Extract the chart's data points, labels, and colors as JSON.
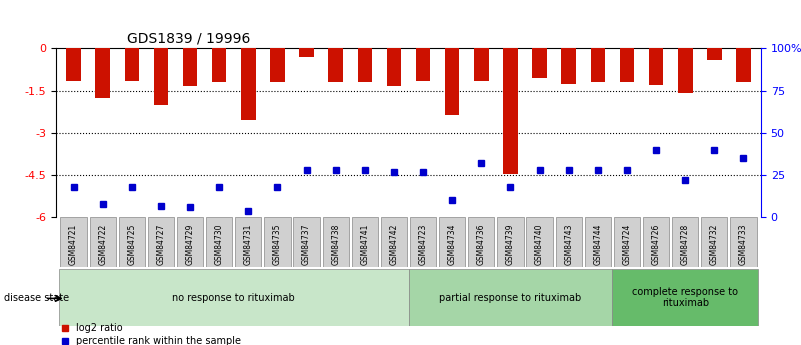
{
  "title": "GDS1839 / 19996",
  "samples": [
    "GSM84721",
    "GSM84722",
    "GSM84725",
    "GSM84727",
    "GSM84729",
    "GSM84730",
    "GSM84731",
    "GSM84735",
    "GSM84737",
    "GSM84738",
    "GSM84741",
    "GSM84742",
    "GSM84723",
    "GSM84734",
    "GSM84736",
    "GSM84739",
    "GSM84740",
    "GSM84743",
    "GSM84744",
    "GSM84724",
    "GSM84726",
    "GSM84728",
    "GSM84732",
    "GSM84733"
  ],
  "log2_values": [
    -1.15,
    -1.75,
    -1.15,
    -2.0,
    -1.35,
    -1.2,
    -2.55,
    -1.2,
    -0.3,
    -1.2,
    -1.2,
    -1.35,
    -1.15,
    -2.35,
    -1.15,
    -4.45,
    -1.05,
    -1.25,
    -1.2,
    -1.2,
    -1.3,
    -1.6,
    -0.4,
    -1.2
  ],
  "percentile_values": [
    18,
    8,
    18,
    7,
    6,
    18,
    4,
    18,
    28,
    28,
    28,
    27,
    27,
    10,
    32,
    18,
    28,
    28,
    28,
    28,
    40,
    22,
    40,
    35
  ],
  "groups": [
    {
      "label": "no response to rituximab",
      "start": 0,
      "end": 11,
      "color": "#c8e6c9"
    },
    {
      "label": "partial response to rituximab",
      "start": 12,
      "end": 18,
      "color": "#a5d6a7"
    },
    {
      "label": "complete response to\nrituximab",
      "start": 19,
      "end": 23,
      "color": "#66bb6a"
    }
  ],
  "ylim_left": [
    -6,
    0
  ],
  "ylim_right": [
    0,
    100
  ],
  "yticks_left": [
    0,
    -1.5,
    -3.0,
    -4.5,
    -6
  ],
  "ytick_labels_left": [
    "0",
    "-1.5",
    "-3",
    "-4.5",
    "-6"
  ],
  "yticks_right": [
    0,
    25,
    50,
    75,
    100
  ],
  "ytick_labels_right": [
    "0",
    "25",
    "50",
    "75",
    "100%"
  ],
  "bar_color": "#cc1100",
  "dot_color": "#0000cc",
  "legend_items": [
    {
      "label": "log2 ratio",
      "color": "#cc1100"
    },
    {
      "label": "percentile rank within the sample",
      "color": "#0000cc"
    }
  ]
}
